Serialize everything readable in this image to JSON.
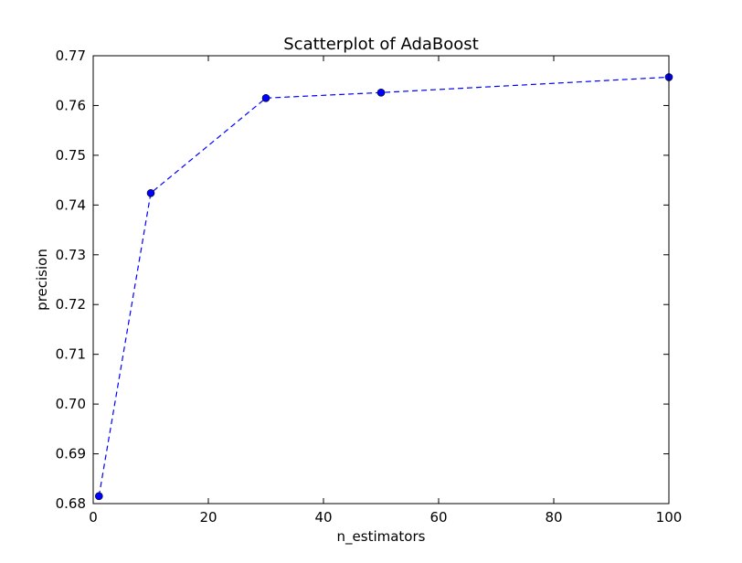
{
  "chart_data": {
    "type": "scatter",
    "title": "Scatterplot of AdaBoost",
    "xlabel": "n_estimators",
    "ylabel": "precision",
    "xlim": [
      0,
      100
    ],
    "ylim": [
      0.68,
      0.77
    ],
    "xticks": [
      "0",
      "20",
      "40",
      "60",
      "80",
      "100"
    ],
    "yticks": [
      "0.68",
      "0.69",
      "0.70",
      "0.71",
      "0.72",
      "0.73",
      "0.74",
      "0.75",
      "0.76",
      "0.77"
    ],
    "grid": false,
    "line_style": "dashed",
    "color": "#0000ff",
    "series": [
      {
        "x": [
          1,
          10,
          30,
          50,
          100
        ],
        "y": [
          0.6815,
          0.7424,
          0.7615,
          0.7626,
          0.7657
        ]
      }
    ]
  }
}
